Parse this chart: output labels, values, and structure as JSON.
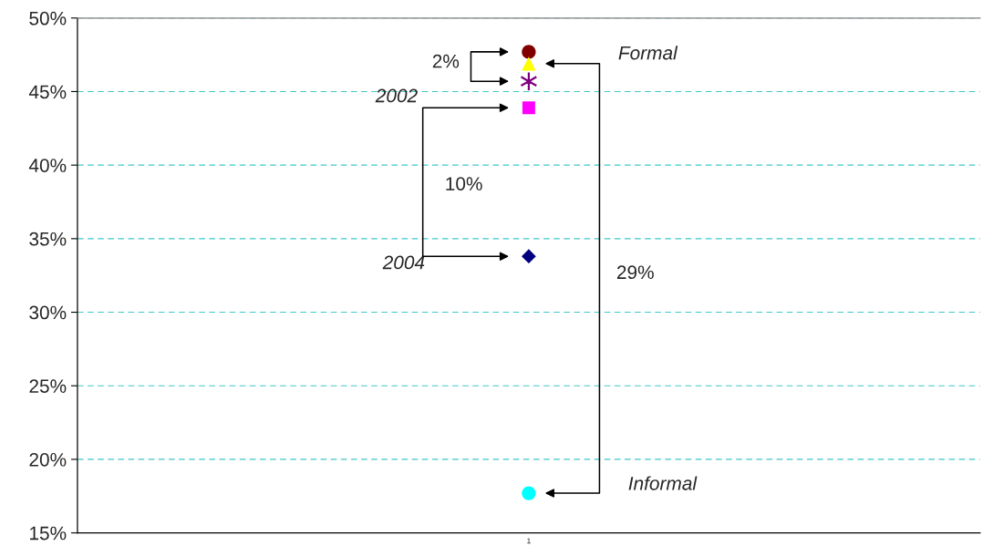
{
  "chart_data": {
    "type": "scatter",
    "categories": [
      "1"
    ],
    "series": [
      {
        "color": "#800000",
        "marker": "circle",
        "values": [
          47.7
        ]
      },
      {
        "color": "#ffff00",
        "marker": "triangle",
        "values": [
          46.9
        ]
      },
      {
        "color": "#800080",
        "marker": "cross",
        "values": [
          45.7
        ]
      },
      {
        "color": "#ff00ff",
        "marker": "square",
        "values": [
          43.9
        ]
      },
      {
        "color": "#000080",
        "marker": "diamond",
        "values": [
          33.8
        ]
      },
      {
        "color": "#00ffff",
        "marker": "circle",
        "values": [
          17.7
        ]
      }
    ],
    "ylim": [
      15,
      50
    ],
    "yticks": [
      {
        "value": 15,
        "label": "15%"
      },
      {
        "value": 20,
        "label": "20%"
      },
      {
        "value": 25,
        "label": "25%"
      },
      {
        "value": 30,
        "label": "30%"
      },
      {
        "value": 35,
        "label": "35%"
      },
      {
        "value": 40,
        "label": "40%"
      },
      {
        "value": 45,
        "label": "45%"
      },
      {
        "value": 50,
        "label": "50%"
      }
    ],
    "grid": "y",
    "annotations": [
      "Formal",
      "Informal",
      "2002",
      "2004",
      "2%",
      "10%",
      "29%"
    ]
  }
}
